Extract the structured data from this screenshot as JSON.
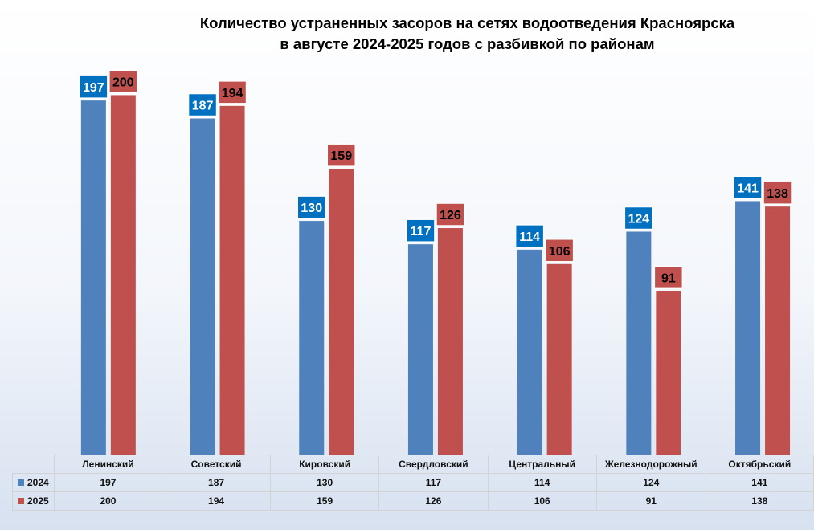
{
  "chart_data": {
    "type": "bar",
    "title_lines": [
      "Количество устраненных засоров на сетях водоотведения Красноярска",
      "в августе 2024-2025 годов с разбивкой по районам"
    ],
    "categories": [
      "Ленинский",
      "Советский",
      "Кировский",
      "Свердловский",
      "Центральный",
      "Железнодорожный",
      "Октябрьский"
    ],
    "series": [
      {
        "name": "2024",
        "color": "#4f81bd",
        "label_color": "#0070c0",
        "label_text_color": "#ffffff",
        "values": [
          197,
          187,
          130,
          117,
          114,
          124,
          141
        ]
      },
      {
        "name": "2025",
        "color": "#c0504d",
        "label_color": "#c0504d",
        "label_text_color": "#000000",
        "values": [
          200,
          194,
          159,
          126,
          106,
          91,
          138
        ]
      }
    ],
    "ylim": [
      0,
      206
    ],
    "grid": false,
    "legend": "data-table"
  }
}
